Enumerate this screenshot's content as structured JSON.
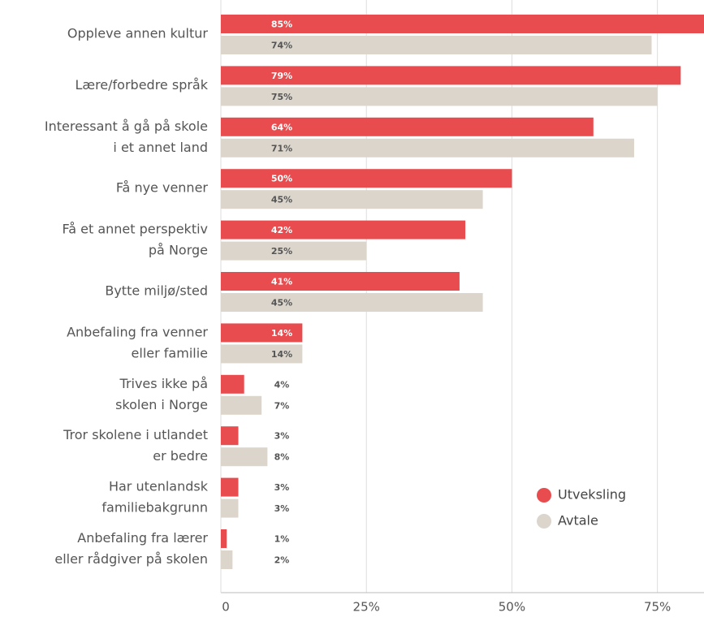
{
  "chart_data": {
    "type": "bar",
    "orientation": "horizontal",
    "categories": [
      "Oppleve annen kultur",
      "Lære/forbedre språk",
      "Interessant å gå på skole\ni et annet land",
      "Få nye venner",
      "Få et annet perspektiv\npå Norge",
      "Bytte miljø/sted",
      "Anbefaling fra venner\neller familie",
      "Trives ikke på\nskolen i Norge",
      "Tror skolene i utlandet\ner bedre",
      "Har utenlandsk\nfamiliebakgrunn",
      "Anbefaling fra lærer\neller rådgiver på skolen"
    ],
    "series": [
      {
        "name": "Utveksling",
        "color": "#e84c4f",
        "values": [
          85,
          79,
          64,
          50,
          42,
          41,
          14,
          4,
          3,
          3,
          1
        ],
        "value_labels": [
          "85%",
          "79%",
          "64%",
          "50%",
          "42%",
          "41%",
          "14%",
          "4%",
          "3%",
          "3%",
          "1%"
        ]
      },
      {
        "name": "Avtale",
        "color": "#dcd5cc",
        "values": [
          74,
          75,
          71,
          45,
          25,
          45,
          14,
          7,
          8,
          3,
          2
        ],
        "value_labels": [
          "74%",
          "75%",
          "71%",
          "45%",
          "25%",
          "45%",
          "14%",
          "7%",
          "8%",
          "3%",
          "2%"
        ]
      }
    ],
    "xlim": [
      0,
      83
    ],
    "xticks": [
      {
        "value": 0,
        "label": "0"
      },
      {
        "value": 25,
        "label": "25%"
      },
      {
        "value": 50,
        "label": "50%"
      },
      {
        "value": 75,
        "label": "75%"
      }
    ],
    "grid": true,
    "legend": "lower right"
  }
}
